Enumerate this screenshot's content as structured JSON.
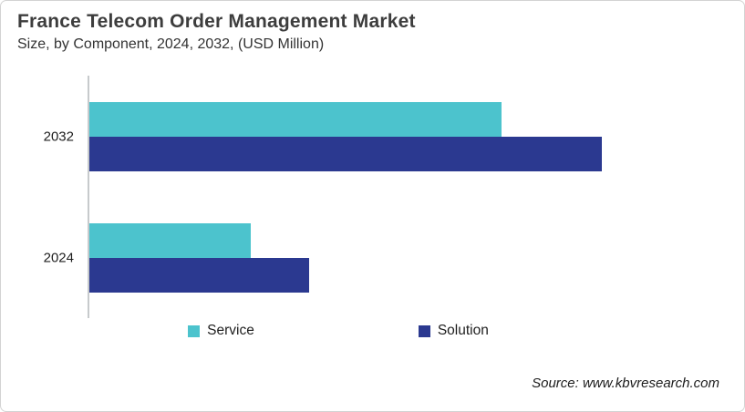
{
  "chart_data": {
    "type": "bar",
    "orientation": "horizontal",
    "title": "France Telecom Order Management Market",
    "subtitle": "Size, by Component, 2024, 2032, (USD Million)",
    "categories": [
      "2032",
      "2024"
    ],
    "series": [
      {
        "name": "Service",
        "color": "#4CC3CD",
        "values": [
          65.3,
          25.6
        ]
      },
      {
        "name": "Solution",
        "color": "#2B3990",
        "values": [
          81.2,
          34.8
        ]
      }
    ],
    "value_axis": {
      "visible": false,
      "range": [
        0,
        100
      ],
      "values_estimated": true
    },
    "units": "USD Million",
    "gridlines": false,
    "legend_position": "bottom",
    "category_axis_line_color": "#c7cacc"
  },
  "footer": {
    "source": "Source: www.kbvresearch.com"
  }
}
